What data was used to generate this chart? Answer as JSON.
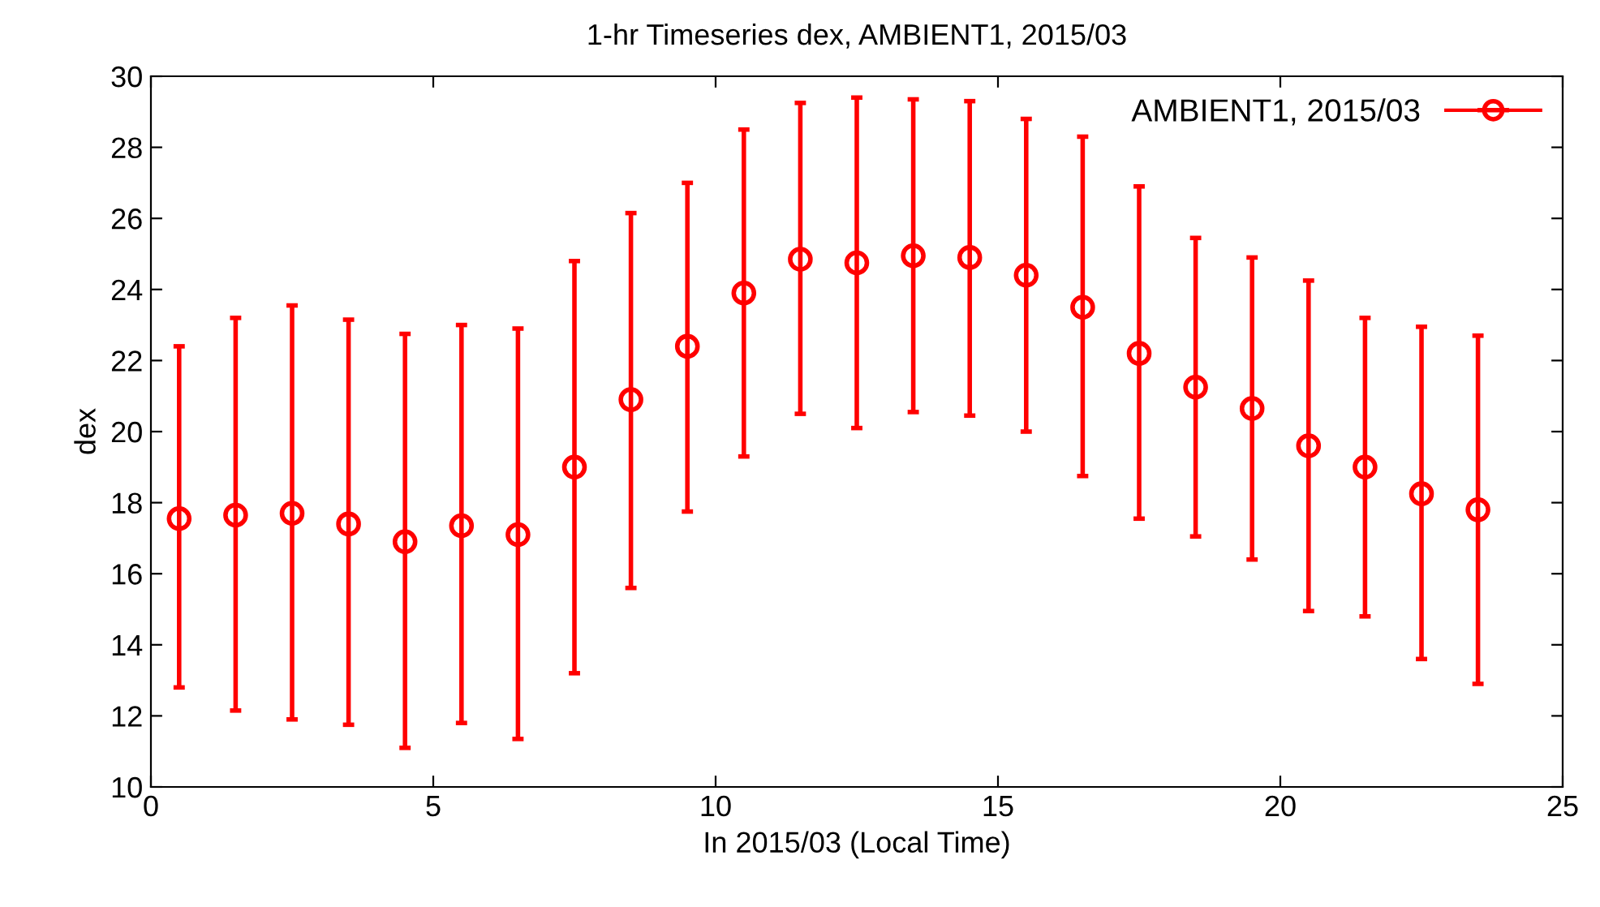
{
  "chart_data": {
    "type": "scatter",
    "title": "1-hr Timeseries dex, AMBIENT1, 2015/03",
    "xlabel": "In 2015/03 (Local Time)",
    "ylabel": "dex",
    "x": [
      0.5,
      1.5,
      2.5,
      3.5,
      4.5,
      5.5,
      6.5,
      7.5,
      8.5,
      9.5,
      10.5,
      11.5,
      12.5,
      13.5,
      14.5,
      15.5,
      16.5,
      17.5,
      18.5,
      19.5,
      20.5,
      21.5,
      22.5,
      23.5
    ],
    "series": [
      {
        "name": "AMBIENT1, 2015/03",
        "color": "#ff0000",
        "values": [
          17.55,
          17.65,
          17.7,
          17.4,
          16.9,
          17.35,
          17.1,
          19.0,
          20.9,
          22.4,
          23.9,
          24.85,
          24.75,
          24.95,
          24.9,
          24.4,
          23.5,
          22.2,
          21.25,
          20.65,
          19.6,
          19.0,
          18.25,
          17.8
        ],
        "errors": [
          [
            12.8,
            22.4
          ],
          [
            12.15,
            23.2
          ],
          [
            11.9,
            23.55
          ],
          [
            11.75,
            23.15
          ],
          [
            11.1,
            22.75
          ],
          [
            11.8,
            23.0
          ],
          [
            11.35,
            22.9
          ],
          [
            13.2,
            24.8
          ],
          [
            15.6,
            26.15
          ],
          [
            17.75,
            27.0
          ],
          [
            19.3,
            28.5
          ],
          [
            20.5,
            29.25
          ],
          [
            20.1,
            29.4
          ],
          [
            20.55,
            29.35
          ],
          [
            20.45,
            29.3
          ],
          [
            20.0,
            28.8
          ],
          [
            18.75,
            28.3
          ],
          [
            17.55,
            26.9
          ],
          [
            17.05,
            25.45
          ],
          [
            16.4,
            24.9
          ],
          [
            14.95,
            24.25
          ],
          [
            14.8,
            23.2
          ],
          [
            13.6,
            22.95
          ],
          [
            12.9,
            22.7
          ]
        ]
      }
    ],
    "xlim": [
      0,
      25
    ],
    "xticks": [
      0,
      5,
      10,
      15,
      20,
      25
    ],
    "ylim": [
      10,
      30
    ],
    "yticks": [
      10,
      12,
      14,
      16,
      18,
      20,
      22,
      24,
      26,
      28,
      30
    ],
    "marker": "circle",
    "grid": false,
    "legend": "top right"
  }
}
